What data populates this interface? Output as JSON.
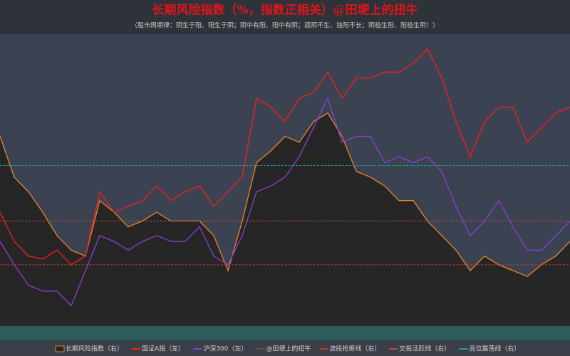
{
  "chart_data": {
    "type": "line",
    "title": "长期风险指数（%，指数正相关）@田埂上的扭牛",
    "subtitle": "（股市周期律：阴生于阳、阳生于阴；阴中有阳、阳中有阴；孤阴不生、独阳不长；阴极生阳、阳极生阴！）",
    "categories": [
      null,
      null,
      null,
      null,
      null,
      null,
      null,
      null,
      null,
      null,
      null,
      null,
      null,
      null,
      null,
      null,
      null,
      null,
      null,
      null,
      null,
      null,
      null,
      null,
      null,
      null,
      null,
      null,
      null,
      null,
      null,
      null,
      null,
      null,
      null,
      null,
      null,
      null,
      null,
      null,
      null
    ],
    "ylim": [
      0,
      100
    ],
    "y2lim": [
      0,
      100
    ],
    "series": [
      {
        "name": "长期风险指数（右）",
        "color": "#e8842a",
        "fill": "#262626",
        "axis": "y2",
        "values": [
          65,
          51,
          46,
          39,
          31,
          26,
          24,
          43,
          39,
          34,
          36,
          39,
          36,
          36,
          36,
          31,
          19,
          36,
          56,
          60,
          65,
          63,
          70,
          73,
          65,
          53,
          51,
          48,
          43,
          43,
          36,
          31,
          26,
          19,
          24,
          21,
          19,
          17,
          21,
          24,
          29
        ]
      },
      {
        "name": "国证A指（左）",
        "color": "#ff1a1a",
        "values": [
          39,
          29,
          24,
          23,
          26,
          21,
          24,
          46,
          39,
          41,
          43,
          48,
          43,
          46,
          48,
          41,
          46,
          51,
          78,
          75,
          70,
          78,
          80,
          87,
          78,
          85,
          85,
          87,
          87,
          90,
          95,
          85,
          70,
          58,
          70,
          75,
          75,
          63,
          68,
          73,
          75
        ]
      },
      {
        "name": "沪深300（左）",
        "color": "#8a3fd1",
        "values": [
          29,
          21,
          14,
          12,
          12,
          7,
          19,
          31,
          29,
          26,
          29,
          31,
          29,
          29,
          34,
          24,
          21,
          31,
          46,
          48,
          51,
          58,
          68,
          78,
          63,
          65,
          65,
          56,
          58,
          56,
          58,
          53,
          41,
          31,
          36,
          43,
          34,
          26,
          26,
          31,
          36
        ]
      }
    ],
    "legend_extra": "@田埂上的扭牛",
    "hlines": [
      {
        "name": "波段抢筹线（右）",
        "color": "#c0392b",
        "value": 21
      },
      {
        "name": "交投活跃线（右）",
        "color": "#b5503a",
        "value": 36
      },
      {
        "name": "高位震荡线（右）",
        "color": "#1aa58a",
        "value": 55
      }
    ]
  }
}
